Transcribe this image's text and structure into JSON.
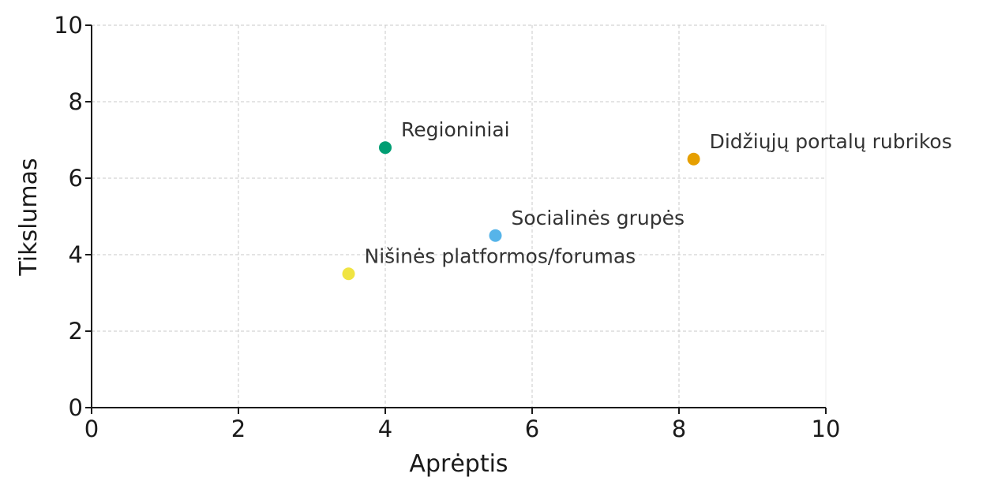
{
  "chart_data": {
    "type": "scatter",
    "title": "",
    "xlabel": "Aprėptis",
    "ylabel": "Tikslumas",
    "xlim": [
      0,
      10
    ],
    "ylim": [
      0,
      10
    ],
    "xticks": [
      "0",
      "2",
      "4",
      "6",
      "8",
      "10"
    ],
    "yticks": [
      "0",
      "2",
      "4",
      "6",
      "8",
      "10"
    ],
    "grid": true,
    "points": [
      {
        "label": "Regioniniai",
        "x": 4.0,
        "y": 6.8,
        "color": "#009e73"
      },
      {
        "label": "Didžiųjų portalų rubrikos",
        "x": 8.2,
        "y": 6.5,
        "color": "#e69f00"
      },
      {
        "label": "Socialinės grupės",
        "x": 5.5,
        "y": 4.5,
        "color": "#56b4e9"
      },
      {
        "label": "Nišinės platformos/forumas",
        "x": 3.5,
        "y": 3.5,
        "color": "#f0e442"
      }
    ]
  }
}
